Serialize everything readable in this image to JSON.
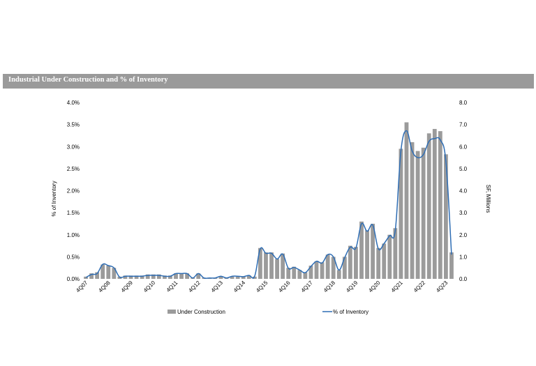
{
  "header": {
    "title": "Industrial Under Construction and % of Inventory"
  },
  "chart_data": {
    "type": "bar",
    "title": "Industrial Under Construction and % of Inventory",
    "y_left_label": "% of Inventory",
    "y_right_label": "SF, Millions",
    "y_left_ticks": [
      "0.0%",
      "0.5%",
      "1.0%",
      "1.5%",
      "2.0%",
      "2.5%",
      "3.0%",
      "3.5%",
      "4.0%"
    ],
    "y_right_ticks": [
      "0.0",
      "1.0",
      "2.0",
      "3.0",
      "4.0",
      "5.0",
      "6.0",
      "7.0",
      "8.0"
    ],
    "y_left_range": [
      0,
      4.0
    ],
    "y_right_range": [
      0,
      8.0
    ],
    "x_tick_labels": [
      "4Q07",
      "4Q08",
      "4Q09",
      "4Q10",
      "4Q11",
      "4Q12",
      "4Q13",
      "4Q14",
      "4Q15",
      "4Q16",
      "4Q17",
      "4Q18",
      "4Q19",
      "4Q20",
      "4Q21",
      "4Q22",
      "4Q23"
    ],
    "x_tick_step": 4,
    "legend_position": "bottom",
    "grid": false,
    "bar_color": "#9b9b9b",
    "line_color": "#2e6db4",
    "series": [
      {
        "name": "Under Construction",
        "type": "bar",
        "axis": "right",
        "values": [
          0.1,
          0.25,
          0.3,
          0.65,
          0.6,
          0.5,
          0.1,
          0.15,
          0.15,
          0.15,
          0.15,
          0.2,
          0.2,
          0.2,
          0.15,
          0.15,
          0.25,
          0.25,
          0.25,
          0.05,
          0.25,
          0.05,
          0.05,
          0.05,
          0.1,
          0.05,
          0.1,
          0.1,
          0.1,
          0.15,
          0.1,
          1.4,
          1.2,
          1.2,
          0.9,
          1.15,
          0.5,
          0.55,
          0.4,
          0.3,
          0.6,
          0.8,
          0.75,
          1.1,
          1.0,
          0.4,
          1.0,
          1.5,
          1.45,
          2.6,
          2.2,
          2.5,
          1.4,
          1.6,
          2.0,
          2.3,
          5.9,
          7.1,
          6.2,
          5.8,
          5.95,
          6.6,
          6.8,
          6.7,
          5.65,
          1.2
        ]
      },
      {
        "name": "% of Inventory",
        "type": "line",
        "axis": "left",
        "values": [
          0.03,
          0.1,
          0.12,
          0.33,
          0.3,
          0.25,
          0.04,
          0.06,
          0.06,
          0.06,
          0.06,
          0.08,
          0.08,
          0.08,
          0.06,
          0.06,
          0.12,
          0.12,
          0.12,
          0.02,
          0.12,
          0.02,
          0.02,
          0.02,
          0.06,
          0.02,
          0.06,
          0.06,
          0.05,
          0.08,
          0.06,
          0.68,
          0.58,
          0.58,
          0.45,
          0.56,
          0.24,
          0.26,
          0.2,
          0.14,
          0.28,
          0.4,
          0.36,
          0.55,
          0.5,
          0.2,
          0.48,
          0.72,
          0.7,
          1.25,
          1.08,
          1.22,
          0.68,
          0.8,
          0.98,
          1.1,
          2.9,
          3.36,
          2.9,
          2.75,
          2.82,
          3.12,
          3.18,
          3.15,
          2.66,
          0.55
        ]
      }
    ]
  }
}
